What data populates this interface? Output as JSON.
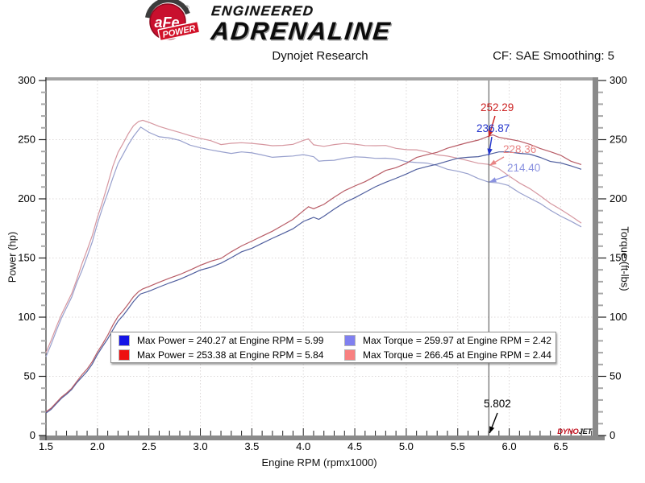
{
  "header": {
    "brand": {
      "circle_text": "aFe",
      "registered": "®",
      "ribbon_text": "POWER",
      "line1": "ENGINEERED",
      "line2": "ADRENALINE"
    },
    "title_left": "Dynojet Research",
    "title_right": "CF: SAE Smoothing: 5"
  },
  "legend": {
    "items": [
      {
        "color": "#1414e6",
        "label": "Max Power = 240.27 at Engine RPM = 5.99"
      },
      {
        "color": "#ee1111",
        "label": "Max Power = 253.38 at Engine RPM = 5.84"
      },
      {
        "color": "#8080f0",
        "label": "Max Torque = 259.97 at Engine RPM = 2.42"
      },
      {
        "color": "#f88080",
        "label": "Max Torque = 266.45 at Engine RPM = 2.44"
      }
    ]
  },
  "chart_data": {
    "type": "line",
    "title": "Dynojet Research",
    "xlabel": "Engine RPM (rpmx1000)",
    "ylabel_left": "Power (hp)",
    "ylabel_right": "Torque (ft-lbs)",
    "xlim": [
      1.5,
      6.81
    ],
    "ylim": [
      0,
      300
    ],
    "x_tick_labels": [
      "1.5",
      "2.0",
      "2.5",
      "3.0",
      "3.5",
      "4.0",
      "4.5",
      "5.0",
      "5.5",
      "6.0",
      "6.5"
    ],
    "x_minor_step": 0.1,
    "y_tick_labels": [
      "0",
      "50",
      "100",
      "150",
      "200",
      "250",
      "300"
    ],
    "y_minor_step": 10,
    "grid": "dotted at major ticks",
    "legend_position": "bottom center inside plot",
    "watermark": {
      "part1": "DYNO",
      "part2": "JET"
    },
    "cursor": {
      "x": 5.802,
      "label": "5.802",
      "readouts": [
        {
          "series": "power_red",
          "value": "252.29",
          "color": "#cc2222"
        },
        {
          "series": "power_blue",
          "value": "236.87",
          "color": "#2233cc"
        },
        {
          "series": "torque_red",
          "value": "228.36",
          "color": "#e88484"
        },
        {
          "series": "torque_blue",
          "value": "214.40",
          "color": "#8a92e0"
        }
      ]
    },
    "series": [
      {
        "id": "torque_blue",
        "axis": "right",
        "color": "#98a0cd",
        "legend_label": "Max Torque = 259.97 at Engine RPM = 2.42",
        "max": {
          "value": 259.97,
          "rpm": 2.42
        },
        "points": [
          [
            1.5,
            66.5
          ],
          [
            1.55,
            77.9
          ],
          [
            1.6,
            88.6
          ],
          [
            1.65,
            98.7
          ],
          [
            1.7,
            108.1
          ],
          [
            1.75,
            117
          ],
          [
            1.8,
            128.4
          ],
          [
            1.85,
            139.1
          ],
          [
            1.9,
            152
          ],
          [
            1.95,
            164.3
          ],
          [
            2.0,
            178.6
          ],
          [
            2.05,
            192.2
          ],
          [
            2.1,
            205.1
          ],
          [
            2.15,
            217.4
          ],
          [
            2.2,
            229.2
          ],
          [
            2.25,
            238.2
          ],
          [
            2.3,
            246.6
          ],
          [
            2.35,
            252.5
          ],
          [
            2.42,
            260
          ],
          [
            2.5,
            256.3
          ],
          [
            2.6,
            252.5
          ],
          [
            2.7,
            250.9
          ],
          [
            2.8,
            249.5
          ],
          [
            2.9,
            246.3
          ],
          [
            3.0,
            243.3
          ],
          [
            3.1,
            240.6
          ],
          [
            3.2,
            239.6
          ],
          [
            3.3,
            238.7
          ],
          [
            3.4,
            239.4
          ],
          [
            3.5,
            238.6
          ],
          [
            3.6,
            237.8
          ],
          [
            3.7,
            235.6
          ],
          [
            3.8,
            235
          ],
          [
            3.9,
            235.6
          ],
          [
            4.0,
            237.7
          ],
          [
            4.1,
            235.7
          ],
          [
            4.15,
            231.5
          ],
          [
            4.2,
            232.6
          ],
          [
            4.3,
            233.3
          ],
          [
            4.4,
            234
          ],
          [
            4.5,
            234.6
          ],
          [
            4.6,
            235.2
          ],
          [
            4.7,
            234.7
          ],
          [
            4.8,
            234.2
          ],
          [
            4.9,
            233.6
          ],
          [
            5.0,
            232.1
          ],
          [
            5.1,
            230.7
          ],
          [
            5.2,
            229.3
          ],
          [
            5.3,
            227.9
          ],
          [
            5.4,
            225.6
          ],
          [
            5.5,
            223.5
          ],
          [
            5.6,
            220.9
          ],
          [
            5.7,
            217.5
          ],
          [
            5.8,
            214.5
          ],
          [
            5.9,
            212.7
          ],
          [
            5.99,
            210.7
          ],
          [
            6.1,
            205.7
          ],
          [
            6.2,
            201.2
          ],
          [
            6.3,
            195.9
          ],
          [
            6.4,
            190.4
          ],
          [
            6.5,
            185.8
          ],
          [
            6.6,
            180.7
          ],
          [
            6.7,
            176.3
          ]
        ]
      },
      {
        "id": "torque_red",
        "axis": "right",
        "color": "#d697a0",
        "legend_label": "Max Torque = 266.45 at Engine RPM = 2.44",
        "max": {
          "value": 266.45,
          "rpm": 2.44
        },
        "points": [
          [
            1.5,
            70
          ],
          [
            1.55,
            81.3
          ],
          [
            1.6,
            91.9
          ],
          [
            1.65,
            101.8
          ],
          [
            1.7,
            111.2
          ],
          [
            1.75,
            120
          ],
          [
            1.8,
            131.3
          ],
          [
            1.85,
            144.8
          ],
          [
            1.9,
            157.6
          ],
          [
            1.95,
            169.7
          ],
          [
            2.0,
            183.8
          ],
          [
            2.05,
            197.3
          ],
          [
            2.1,
            212.6
          ],
          [
            2.15,
            227.2
          ],
          [
            2.2,
            238.7
          ],
          [
            2.25,
            247.5
          ],
          [
            2.3,
            255.8
          ],
          [
            2.35,
            261.5
          ],
          [
            2.4,
            264.8
          ],
          [
            2.44,
            266.5
          ],
          [
            2.5,
            264.7
          ],
          [
            2.6,
            260.6
          ],
          [
            2.7,
            258.7
          ],
          [
            2.8,
            257
          ],
          [
            2.9,
            253.5
          ],
          [
            3.0,
            250.3
          ],
          [
            3.1,
            249
          ],
          [
            3.2,
            246.2
          ],
          [
            3.3,
            246.7
          ],
          [
            3.4,
            247.2
          ],
          [
            3.5,
            247.6
          ],
          [
            3.6,
            246.5
          ],
          [
            3.7,
            244.2
          ],
          [
            3.8,
            244.6
          ],
          [
            3.9,
            246.4
          ],
          [
            4.0,
            249.5
          ],
          [
            4.05,
            250.3
          ],
          [
            4.1,
            246
          ],
          [
            4.2,
            245.1
          ],
          [
            4.3,
            245.5
          ],
          [
            4.4,
            245.9
          ],
          [
            4.5,
            246.3
          ],
          [
            4.6,
            245.5
          ],
          [
            4.7,
            244.7
          ],
          [
            4.8,
            245.1
          ],
          [
            4.9,
            243.3
          ],
          [
            5.0,
            241.6
          ],
          [
            5.1,
            240.5
          ],
          [
            5.2,
            239.4
          ],
          [
            5.3,
            237.8
          ],
          [
            5.4,
            236.3
          ],
          [
            5.5,
            234
          ],
          [
            5.6,
            232.6
          ],
          [
            5.7,
            230.4
          ],
          [
            5.8,
            228.4
          ],
          [
            5.9,
            224.8
          ],
          [
            6.0,
            219.7
          ],
          [
            6.1,
            214
          ],
          [
            6.2,
            208.4
          ],
          [
            6.3,
            202.6
          ],
          [
            6.4,
            196.6
          ],
          [
            6.5,
            190.7
          ],
          [
            6.6,
            184.6
          ],
          [
            6.7,
            179.5
          ]
        ]
      },
      {
        "id": "power_blue",
        "axis": "left",
        "color": "#4f5e9e",
        "legend_label": "Max Power = 240.27 at Engine RPM = 5.99",
        "max": {
          "value": 240.27,
          "rpm": 5.99
        },
        "points": [
          [
            1.5,
            19
          ],
          [
            1.55,
            23
          ],
          [
            1.6,
            27
          ],
          [
            1.65,
            31
          ],
          [
            1.7,
            35
          ],
          [
            1.75,
            39
          ],
          [
            1.8,
            44
          ],
          [
            1.85,
            49
          ],
          [
            1.9,
            55
          ],
          [
            1.95,
            61
          ],
          [
            2.0,
            68
          ],
          [
            2.05,
            75
          ],
          [
            2.1,
            82
          ],
          [
            2.15,
            89
          ],
          [
            2.2,
            96
          ],
          [
            2.25,
            102
          ],
          [
            2.3,
            108
          ],
          [
            2.35,
            113
          ],
          [
            2.4,
            117.5
          ],
          [
            2.42,
            119.8
          ],
          [
            2.5,
            122
          ],
          [
            2.6,
            125
          ],
          [
            2.7,
            129
          ],
          [
            2.8,
            133
          ],
          [
            2.9,
            136
          ],
          [
            3.0,
            139
          ],
          [
            3.1,
            142
          ],
          [
            3.2,
            146
          ],
          [
            3.3,
            150
          ],
          [
            3.4,
            155
          ],
          [
            3.5,
            159
          ],
          [
            3.6,
            163
          ],
          [
            3.7,
            166
          ],
          [
            3.8,
            170
          ],
          [
            3.9,
            175
          ],
          [
            4.0,
            181
          ],
          [
            4.1,
            184
          ],
          [
            4.15,
            183
          ],
          [
            4.2,
            186
          ],
          [
            4.3,
            191
          ],
          [
            4.4,
            196
          ],
          [
            4.5,
            201
          ],
          [
            4.6,
            206
          ],
          [
            4.7,
            210
          ],
          [
            4.8,
            214
          ],
          [
            4.9,
            218
          ],
          [
            5.0,
            221
          ],
          [
            5.1,
            224
          ],
          [
            5.2,
            227
          ],
          [
            5.3,
            230
          ],
          [
            5.4,
            232
          ],
          [
            5.5,
            234
          ],
          [
            5.6,
            235.5
          ],
          [
            5.7,
            236
          ],
          [
            5.8,
            236.8
          ],
          [
            5.9,
            239
          ],
          [
            5.99,
            240.3
          ],
          [
            6.1,
            239
          ],
          [
            6.2,
            237.5
          ],
          [
            6.3,
            235
          ],
          [
            6.4,
            232
          ],
          [
            6.5,
            230
          ],
          [
            6.6,
            227
          ],
          [
            6.7,
            225
          ]
        ]
      },
      {
        "id": "power_red",
        "axis": "left",
        "color": "#b85c66",
        "legend_label": "Max Power = 253.38 at Engine RPM = 5.84",
        "max": {
          "value": 253.38,
          "rpm": 5.84
        },
        "points": [
          [
            1.5,
            20
          ],
          [
            1.55,
            24
          ],
          [
            1.6,
            28
          ],
          [
            1.65,
            32
          ],
          [
            1.7,
            36
          ],
          [
            1.75,
            40
          ],
          [
            1.8,
            45
          ],
          [
            1.85,
            51
          ],
          [
            1.9,
            57
          ],
          [
            1.95,
            63
          ],
          [
            2.0,
            70
          ],
          [
            2.05,
            77
          ],
          [
            2.1,
            85
          ],
          [
            2.15,
            93
          ],
          [
            2.2,
            100
          ],
          [
            2.25,
            106
          ],
          [
            2.3,
            112
          ],
          [
            2.35,
            117
          ],
          [
            2.4,
            121
          ],
          [
            2.44,
            124
          ],
          [
            2.5,
            126
          ],
          [
            2.6,
            129
          ],
          [
            2.7,
            133
          ],
          [
            2.8,
            137
          ],
          [
            2.9,
            140
          ],
          [
            3.0,
            143
          ],
          [
            3.1,
            147
          ],
          [
            3.2,
            150
          ],
          [
            3.3,
            155
          ],
          [
            3.4,
            160
          ],
          [
            3.5,
            165
          ],
          [
            3.6,
            169
          ],
          [
            3.7,
            172
          ],
          [
            3.8,
            177
          ],
          [
            3.9,
            183
          ],
          [
            4.0,
            190
          ],
          [
            4.05,
            193
          ],
          [
            4.1,
            192
          ],
          [
            4.2,
            196
          ],
          [
            4.3,
            201
          ],
          [
            4.4,
            206
          ],
          [
            4.5,
            211
          ],
          [
            4.6,
            215
          ],
          [
            4.7,
            219
          ],
          [
            4.8,
            224
          ],
          [
            4.9,
            227
          ],
          [
            5.0,
            230
          ],
          [
            5.1,
            234
          ],
          [
            5.2,
            237
          ],
          [
            5.3,
            240
          ],
          [
            5.4,
            243
          ],
          [
            5.5,
            245
          ],
          [
            5.6,
            248
          ],
          [
            5.7,
            250
          ],
          [
            5.8,
            252.2
          ],
          [
            5.84,
            253.4
          ],
          [
            5.9,
            252.5
          ],
          [
            6.0,
            251
          ],
          [
            6.1,
            248.5
          ],
          [
            6.2,
            246
          ],
          [
            6.3,
            243
          ],
          [
            6.4,
            239.5
          ],
          [
            6.5,
            236
          ],
          [
            6.6,
            232
          ],
          [
            6.7,
            229
          ]
        ]
      }
    ]
  }
}
